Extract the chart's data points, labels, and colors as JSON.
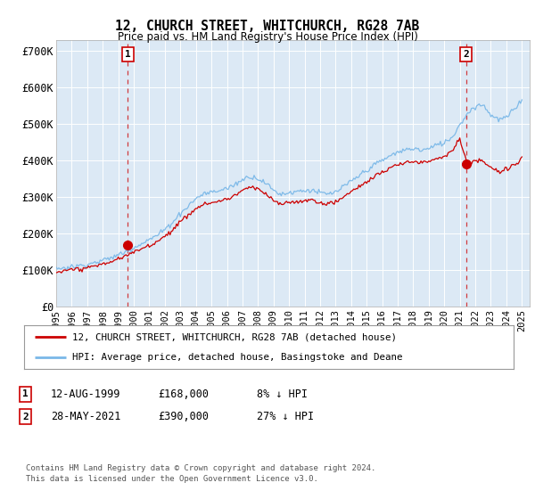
{
  "title": "12, CHURCH STREET, WHITCHURCH, RG28 7AB",
  "subtitle": "Price paid vs. HM Land Registry's House Price Index (HPI)",
  "ylabel_ticks": [
    "£0",
    "£100K",
    "£200K",
    "£300K",
    "£400K",
    "£500K",
    "£600K",
    "£700K"
  ],
  "ytick_values": [
    0,
    100000,
    200000,
    300000,
    400000,
    500000,
    600000,
    700000
  ],
  "ylim": [
    0,
    730000
  ],
  "xlim_start": 1995.0,
  "xlim_end": 2025.5,
  "background_color": "#dce9f5",
  "plot_bg_color": "#dce9f5",
  "hpi_color": "#7ab8e8",
  "price_color": "#cc0000",
  "marker_size": 7,
  "p1_x": 1999.62,
  "p1_y": 168000,
  "p2_x": 2021.4,
  "p2_y": 390000,
  "legend_line1": "12, CHURCH STREET, WHITCHURCH, RG28 7AB (detached house)",
  "legend_line2": "HPI: Average price, detached house, Basingstoke and Deane",
  "footer": "Contains HM Land Registry data © Crown copyright and database right 2024.\nThis data is licensed under the Open Government Licence v3.0.",
  "table_rows": [
    {
      "num": "1",
      "date": "12-AUG-1999",
      "price": "£168,000",
      "note": "8% ↓ HPI"
    },
    {
      "num": "2",
      "date": "28-MAY-2021",
      "price": "£390,000",
      "note": "27% ↓ HPI"
    }
  ],
  "hpi_base_values": [
    105000,
    107000,
    110000,
    113000,
    117000,
    122000,
    128000,
    135000,
    143000,
    152000,
    163000,
    175000,
    185000,
    196000,
    212000,
    232000,
    255000,
    275000,
    295000,
    308000,
    312000,
    316000,
    322000,
    333000,
    348000,
    358000,
    352000,
    338000,
    318000,
    308000,
    312000,
    316000,
    318000,
    319000,
    312000,
    308000,
    314000,
    328000,
    343000,
    358000,
    373000,
    388000,
    400000,
    412000,
    422000,
    428000,
    432000,
    428000,
    432000,
    442000,
    448000,
    462000,
    498000,
    528000,
    548000,
    552000,
    525000,
    512000,
    518000,
    538000,
    568000
  ],
  "price_base_values": [
    96000,
    98000,
    101000,
    104000,
    108000,
    112000,
    118000,
    124000,
    131000,
    140000,
    150000,
    160000,
    170000,
    180000,
    195000,
    213000,
    234000,
    252000,
    271000,
    283000,
    287000,
    290000,
    296000,
    306000,
    319000,
    329000,
    323000,
    310000,
    292000,
    283000,
    287000,
    290000,
    292000,
    293000,
    287000,
    283000,
    288000,
    301000,
    315000,
    329000,
    342000,
    356000,
    367000,
    378000,
    387000,
    393000,
    396000,
    393000,
    396000,
    405000,
    411000,
    424000,
    457000,
    385000,
    395000,
    398000,
    378000,
    368000,
    373000,
    387000,
    408000
  ]
}
